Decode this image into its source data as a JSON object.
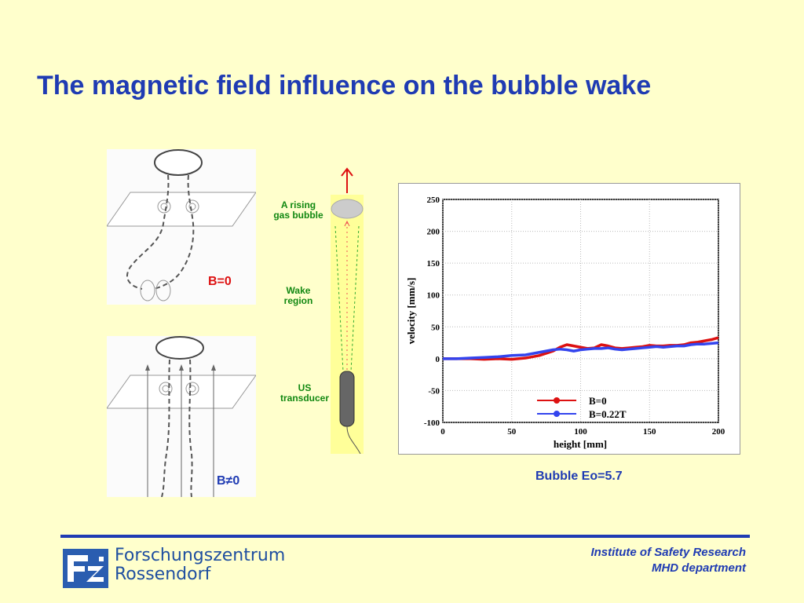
{
  "slide": {
    "title": "The magnetic field influence on the bubble wake",
    "b_zero_label": "B=0",
    "b_nonzero_label": "B≠0"
  },
  "column": {
    "rising_bubble": "A rising\ngas bubble",
    "wake_region": "Wake\nregion",
    "us_transducer": "US\ntransducer"
  },
  "chart_data": {
    "type": "line",
    "xlabel": "height [mm]",
    "ylabel": "velocity  [mm/s]",
    "xlim": [
      0,
      200
    ],
    "ylim": [
      -100,
      250
    ],
    "xticks": [
      0,
      50,
      100,
      150,
      200
    ],
    "yticks": [
      -100,
      -50,
      0,
      50,
      100,
      150,
      200,
      250
    ],
    "grid": true,
    "legend_position": "bottom-center",
    "series": [
      {
        "name": "B=0",
        "color": "#dd1111",
        "x": [
          0,
          10,
          20,
          30,
          40,
          50,
          60,
          70,
          80,
          85,
          90,
          95,
          100,
          105,
          110,
          115,
          120,
          125,
          130,
          135,
          140,
          145,
          150,
          155,
          160,
          165,
          170,
          175,
          180,
          185,
          190,
          195,
          200
        ],
        "y": [
          0,
          0,
          0,
          -1,
          0,
          -1,
          1,
          5,
          12,
          18,
          22,
          20,
          18,
          16,
          17,
          22,
          20,
          17,
          16,
          17,
          18,
          19,
          21,
          20,
          20,
          21,
          21,
          22,
          25,
          26,
          28,
          30,
          33
        ]
      },
      {
        "name": "B=0.22T",
        "color": "#3344ee",
        "x": [
          0,
          10,
          20,
          30,
          40,
          50,
          60,
          70,
          80,
          85,
          90,
          95,
          100,
          105,
          110,
          115,
          120,
          125,
          130,
          135,
          140,
          145,
          150,
          155,
          160,
          165,
          170,
          175,
          180,
          185,
          190,
          195,
          200
        ],
        "y": [
          0,
          0,
          1,
          2,
          3,
          5,
          6,
          10,
          14,
          15,
          14,
          12,
          14,
          15,
          16,
          16,
          17,
          15,
          14,
          15,
          16,
          17,
          18,
          19,
          18,
          19,
          20,
          20,
          22,
          23,
          23,
          24,
          25
        ]
      }
    ]
  },
  "caption": "Bubble Eo=5.7",
  "footer": {
    "institute_line1": "Institute of Safety Research",
    "institute_line2": "MHD department",
    "logo_line1": "Forschungszentrum",
    "logo_line2": "Rossendorf"
  }
}
